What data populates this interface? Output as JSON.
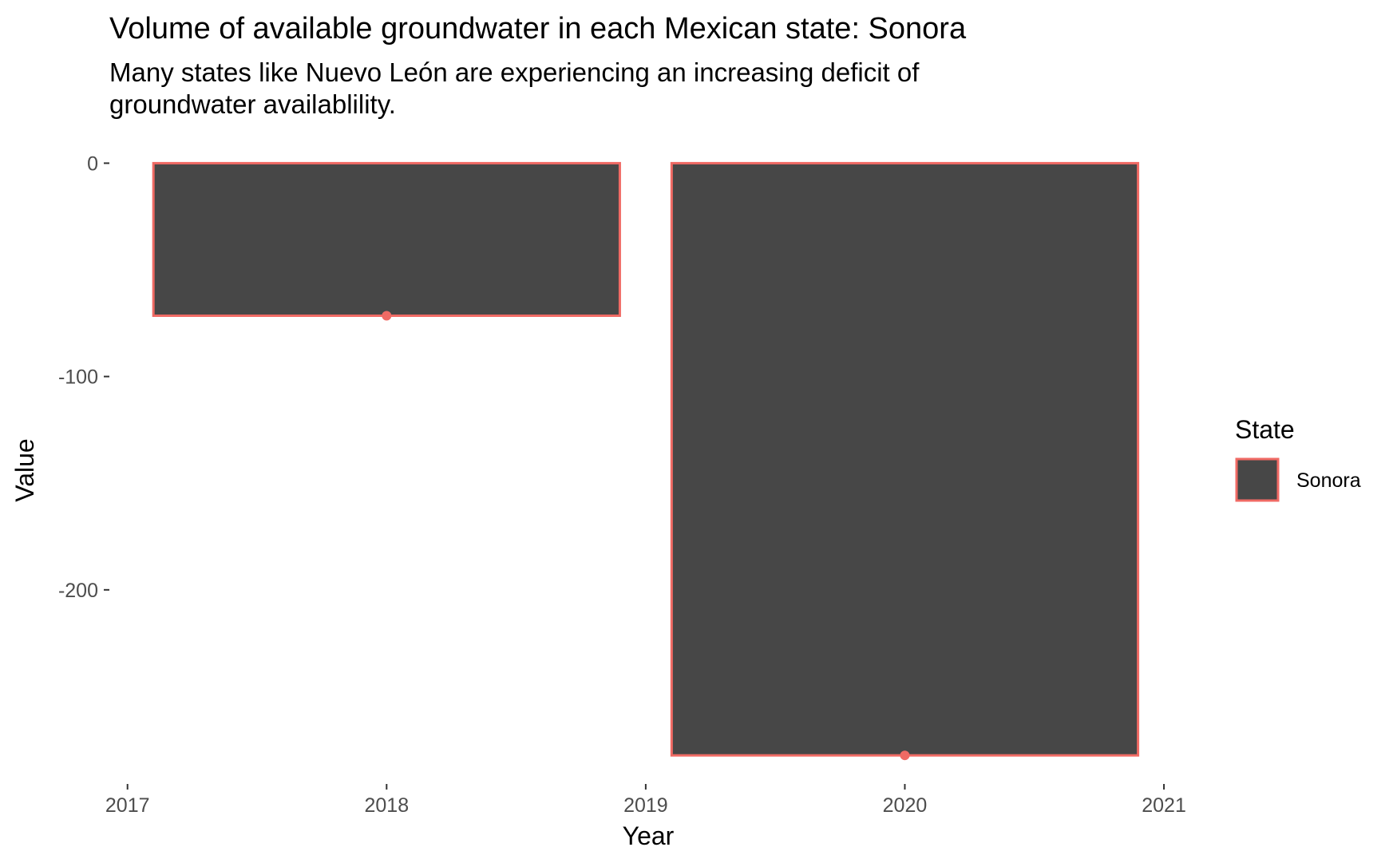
{
  "chart_data": {
    "type": "bar",
    "title": "Volume of available groundwater in each Mexican state: Sonora",
    "subtitle_lines": [
      "Many states like Nuevo León are experiencing an increasing deficit of",
      "groundwater availablility."
    ],
    "xlabel": "Year",
    "ylabel": "Value",
    "x": [
      2018,
      2020
    ],
    "series": [
      {
        "name": "Sonora",
        "values": [
          -71.5,
          -277.6
        ]
      }
    ],
    "bar_width_years": 1.8,
    "xlim": [
      2016.93,
      2021.12
    ],
    "ylim": [
      -291,
      14
    ],
    "x_ticks": [
      2017,
      2018,
      2019,
      2020,
      2021
    ],
    "y_ticks": [
      0,
      -100,
      -200
    ],
    "grid": true,
    "legend": {
      "title": "State",
      "position": "right"
    },
    "colors": {
      "bar_fill": "#474747",
      "bar_outline": "#f06a64",
      "point": "#f06a64",
      "panel": "#e5e5e5",
      "grid": "#ffffff"
    }
  }
}
